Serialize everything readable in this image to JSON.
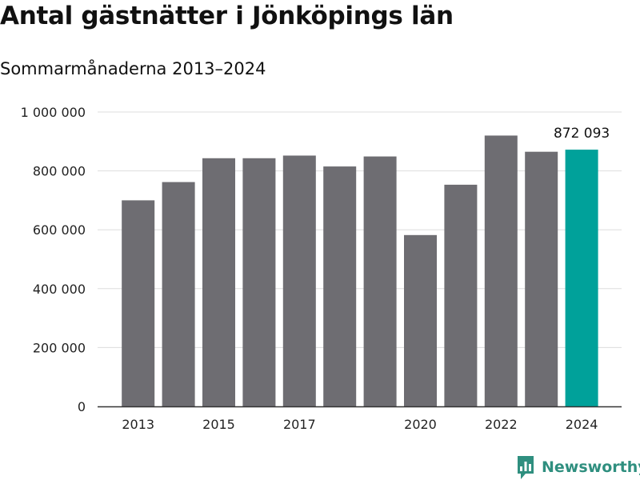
{
  "header": {
    "title": "Antal gästnätter i Jönköpings län",
    "subtitle": "Sommarmånaderna 2013–2024"
  },
  "brand": {
    "name": "Newsworthy"
  },
  "colors": {
    "bar": "#6e6d72",
    "highlight": "#00a19a",
    "grid": "#dddddd",
    "axis": "#333333"
  },
  "chart_data": {
    "type": "bar",
    "title": "Antal gästnätter i Jönköpings län",
    "subtitle": "Sommarmånaderna 2013–2024",
    "categories": [
      "2013",
      "2014",
      "2015",
      "2016",
      "2017",
      "2018",
      "2019",
      "2020",
      "2021",
      "2022",
      "2023",
      "2024"
    ],
    "values": [
      700000,
      762000,
      843000,
      843000,
      852000,
      815000,
      849000,
      582000,
      753000,
      920000,
      865000,
      872093
    ],
    "ylim": [
      0,
      1000000
    ],
    "yticks": [
      0,
      200000,
      400000,
      600000,
      800000,
      1000000
    ],
    "ytick_labels": [
      "0",
      "200 000",
      "400 000",
      "600 000",
      "800 000",
      "1 000 000"
    ],
    "xtick_labels": [
      "2013",
      "2015",
      "2017",
      "2020",
      "2022",
      "2024"
    ],
    "highlight": {
      "category": "2024",
      "label": "872 093"
    },
    "grid": true,
    "legend": "none"
  }
}
